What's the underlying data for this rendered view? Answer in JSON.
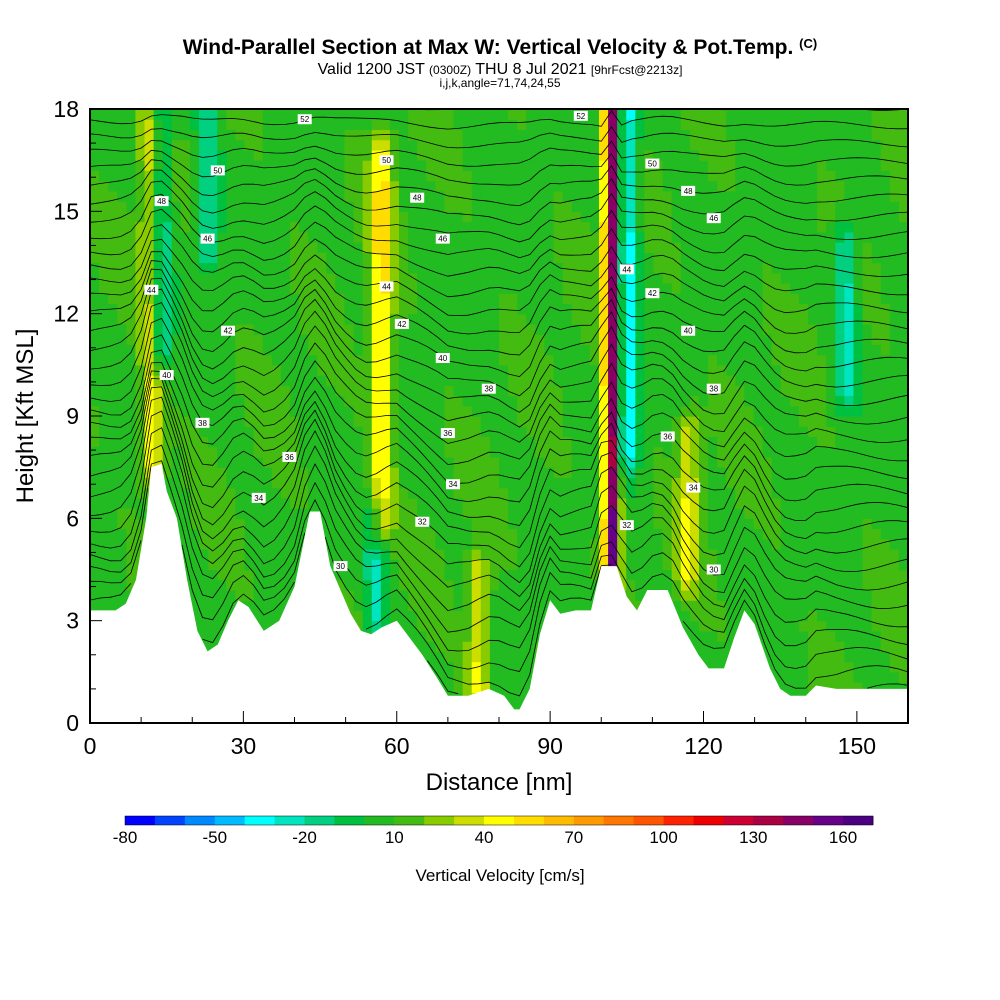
{
  "header": {
    "title": "Wind-Parallel Section at Max W: Vertical Velocity & Pot.Temp.",
    "title_units": "(C)",
    "valid_prefix": "Valid 1200 JST",
    "valid_utc": "(0300Z)",
    "valid_date": "THU 8 Jul 2021",
    "forecast": "[9hrFcst@2213z]",
    "indices": "i,j,k,angle=71,74,24,55"
  },
  "chart_data": {
    "type": "heatmap",
    "title": "Wind-Parallel Section at Max W: Vertical Velocity & Pot.Temp.",
    "xlabel": "Distance [nm]",
    "ylabel": "Height [Kft MSL]",
    "xlim": [
      0,
      160
    ],
    "ylim": [
      0,
      18
    ],
    "x_ticks": [
      "0",
      "30",
      "60",
      "90",
      "120",
      "150"
    ],
    "x_tick_values": [
      0,
      30,
      60,
      90,
      120,
      150
    ],
    "y_ticks": [
      "0",
      "3",
      "6",
      "9",
      "12",
      "15",
      "18"
    ],
    "y_tick_values": [
      0,
      3,
      6,
      9,
      12,
      15,
      18
    ],
    "colorbar": {
      "label": "Vertical Velocity [cm/s]",
      "tick_labels": [
        "-80",
        "-50",
        "-20",
        "10",
        "40",
        "70",
        "100",
        "130",
        "160"
      ],
      "tick_values": [
        -80,
        -50,
        -20,
        10,
        40,
        70,
        100,
        130,
        160
      ],
      "range": [
        -80,
        170
      ],
      "colors": [
        "#0000ff",
        "#0044ff",
        "#0088ff",
        "#00bbff",
        "#00ffff",
        "#00e5c0",
        "#00d080",
        "#00c040",
        "#22bb22",
        "#44bb11",
        "#88cc00",
        "#ccdd00",
        "#ffff00",
        "#ffdd00",
        "#ffbb00",
        "#ff9900",
        "#ff7700",
        "#ff5500",
        "#ff2200",
        "#ee0000",
        "#cc0033",
        "#aa0044",
        "#880066",
        "#660088",
        "#4b0082"
      ]
    },
    "terrain_kft": [
      [
        0,
        3.3
      ],
      [
        5,
        3.3
      ],
      [
        7,
        3.5
      ],
      [
        9,
        4.2
      ],
      [
        11,
        6.0
      ],
      [
        12,
        7.5
      ],
      [
        14,
        7.6
      ],
      [
        15,
        6.8
      ],
      [
        17,
        6.0
      ],
      [
        19,
        4.2
      ],
      [
        21,
        2.7
      ],
      [
        23,
        2.1
      ],
      [
        25,
        2.3
      ],
      [
        27,
        3.0
      ],
      [
        29,
        3.6
      ],
      [
        31,
        3.4
      ],
      [
        34,
        2.7
      ],
      [
        37,
        3.0
      ],
      [
        40,
        4.0
      ],
      [
        43,
        6.2
      ],
      [
        45,
        6.2
      ],
      [
        47,
        4.6
      ],
      [
        49,
        3.9
      ],
      [
        51,
        3.2
      ],
      [
        53,
        2.7
      ],
      [
        55,
        2.6
      ],
      [
        57,
        2.8
      ],
      [
        60,
        3.0
      ],
      [
        62,
        2.6
      ],
      [
        65,
        2.0
      ],
      [
        68,
        1.3
      ],
      [
        70,
        0.8
      ],
      [
        74,
        0.8
      ],
      [
        78,
        1.0
      ],
      [
        81,
        0.8
      ],
      [
        83,
        0.4
      ],
      [
        84,
        0.4
      ],
      [
        86,
        1.0
      ],
      [
        88,
        2.6
      ],
      [
        90,
        3.6
      ],
      [
        92,
        3.2
      ],
      [
        95,
        3.3
      ],
      [
        98,
        3.3
      ],
      [
        100,
        4.6
      ],
      [
        103,
        4.6
      ],
      [
        105,
        3.7
      ],
      [
        107,
        3.3
      ],
      [
        109,
        3.9
      ],
      [
        113,
        3.9
      ],
      [
        116,
        2.8
      ],
      [
        119,
        2.0
      ],
      [
        121,
        1.6
      ],
      [
        124,
        1.6
      ],
      [
        126,
        2.5
      ],
      [
        128,
        3.3
      ],
      [
        130,
        2.9
      ],
      [
        133,
        1.6
      ],
      [
        135,
        1.0
      ],
      [
        137,
        0.8
      ],
      [
        140,
        0.8
      ],
      [
        142,
        1.1
      ],
      [
        146,
        1.0
      ],
      [
        150,
        1.0
      ],
      [
        160,
        1.0
      ]
    ],
    "theta_labels": [
      {
        "x": 42,
        "y": 17.7,
        "text": "52"
      },
      {
        "x": 96,
        "y": 17.8,
        "text": "52"
      },
      {
        "x": 25,
        "y": 16.2,
        "text": "50"
      },
      {
        "x": 58,
        "y": 16.5,
        "text": "50"
      },
      {
        "x": 110,
        "y": 16.4,
        "text": "50"
      },
      {
        "x": 14,
        "y": 15.3,
        "text": "48"
      },
      {
        "x": 64,
        "y": 15.4,
        "text": "48"
      },
      {
        "x": 117,
        "y": 15.6,
        "text": "48"
      },
      {
        "x": 23,
        "y": 14.2,
        "text": "46"
      },
      {
        "x": 69,
        "y": 14.2,
        "text": "46"
      },
      {
        "x": 122,
        "y": 14.8,
        "text": "46"
      },
      {
        "x": 12,
        "y": 12.7,
        "text": "44"
      },
      {
        "x": 58,
        "y": 12.8,
        "text": "44"
      },
      {
        "x": 105,
        "y": 13.3,
        "text": "44"
      },
      {
        "x": 27,
        "y": 11.5,
        "text": "42"
      },
      {
        "x": 61,
        "y": 11.7,
        "text": "42"
      },
      {
        "x": 110,
        "y": 12.6,
        "text": "42"
      },
      {
        "x": 15,
        "y": 10.2,
        "text": "40"
      },
      {
        "x": 69,
        "y": 10.7,
        "text": "40"
      },
      {
        "x": 117,
        "y": 11.5,
        "text": "40"
      },
      {
        "x": 22,
        "y": 8.8,
        "text": "38"
      },
      {
        "x": 78,
        "y": 9.8,
        "text": "38"
      },
      {
        "x": 122,
        "y": 9.8,
        "text": "38"
      },
      {
        "x": 39,
        "y": 7.8,
        "text": "36"
      },
      {
        "x": 70,
        "y": 8.5,
        "text": "36"
      },
      {
        "x": 113,
        "y": 8.4,
        "text": "36"
      },
      {
        "x": 33,
        "y": 6.6,
        "text": "34"
      },
      {
        "x": 71,
        "y": 7.0,
        "text": "34"
      },
      {
        "x": 118,
        "y": 6.9,
        "text": "34"
      },
      {
        "x": 65,
        "y": 5.9,
        "text": "32"
      },
      {
        "x": 105,
        "y": 5.8,
        "text": "32"
      },
      {
        "x": 49,
        "y": 4.6,
        "text": "30"
      },
      {
        "x": 122,
        "y": 4.5,
        "text": "30"
      }
    ],
    "updraft_features": [
      {
        "x": 12,
        "y_bottom": 7.6,
        "y_top": 17.6,
        "w_max": 40
      },
      {
        "x": 57,
        "y_bottom": 6.0,
        "y_top": 16.5,
        "w_max": 45
      },
      {
        "x": 102,
        "y_bottom": 4.6,
        "y_top": 18,
        "w_max": 150
      },
      {
        "x": 76,
        "y_bottom": 1.0,
        "y_top": 4.2,
        "w_max": 35
      },
      {
        "x": 117,
        "y_bottom": 4.5,
        "y_top": 8.5,
        "w_max": 30
      }
    ],
    "downdraft_features": [
      {
        "x": 13.5,
        "y_bottom": 11,
        "y_top": 18,
        "w_min": -40
      },
      {
        "x": 105,
        "y_bottom": 8,
        "y_top": 18,
        "w_min": -45
      },
      {
        "x": 148,
        "y_bottom": 10,
        "y_top": 14,
        "w_min": -35
      },
      {
        "x": 23,
        "y_bottom": 14,
        "y_top": 18,
        "w_min": -30
      },
      {
        "x": 56,
        "y_bottom": 3,
        "y_top": 6,
        "w_min": -30
      }
    ],
    "background_w": 8,
    "grid": false,
    "legend": "bottom"
  }
}
